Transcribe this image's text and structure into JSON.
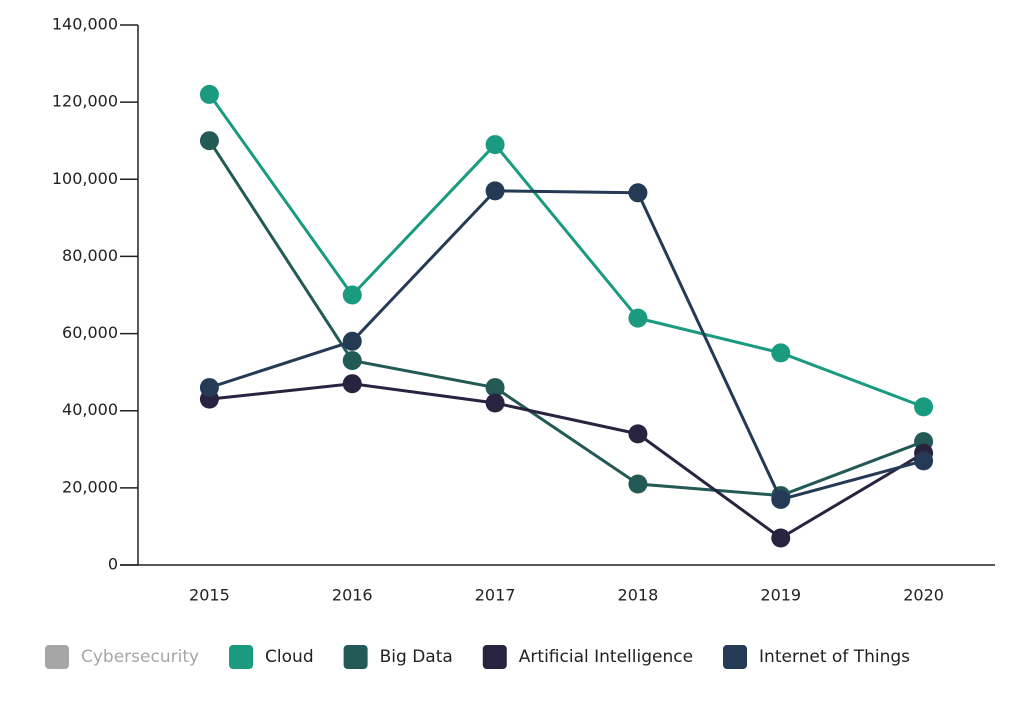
{
  "chart_data": {
    "type": "line",
    "categories": [
      "2015",
      "2016",
      "2017",
      "2018",
      "2019",
      "2020"
    ],
    "series": [
      {
        "name": "Cybersecurity",
        "color": "#a6a6a6",
        "hidden": true,
        "values": [
          null,
          null,
          null,
          null,
          null,
          null
        ]
      },
      {
        "name": "Cloud",
        "color": "#1a9a7e",
        "values": [
          122000,
          70000,
          109000,
          64000,
          55000,
          41000
        ]
      },
      {
        "name": "Big Data",
        "color": "#235a55",
        "values": [
          110000,
          53000,
          46000,
          21000,
          18000,
          32000
        ]
      },
      {
        "name": "Artificial Intelligence",
        "color": "#2a2340",
        "values": [
          43000,
          47000,
          42000,
          34000,
          7000,
          29000
        ]
      },
      {
        "name": "Internet of Things",
        "color": "#243a55",
        "values": [
          46000,
          58000,
          97000,
          96500,
          17000,
          27000
        ]
      }
    ],
    "ylim": [
      0,
      140000
    ],
    "yticks": [
      0,
      {
        "value": 20000,
        "label": "20,000"
      },
      {
        "value": 40000,
        "label": "40,000"
      },
      {
        "value": 60000,
        "label": "60,000"
      },
      {
        "value": 80000,
        "label": "80,000"
      },
      {
        "value": 100000,
        "label": "100,000"
      },
      {
        "value": 120000,
        "label": "120,000"
      },
      {
        "value": 140000,
        "label": "140,000"
      }
    ],
    "legend": "bottom",
    "grid": false
  }
}
